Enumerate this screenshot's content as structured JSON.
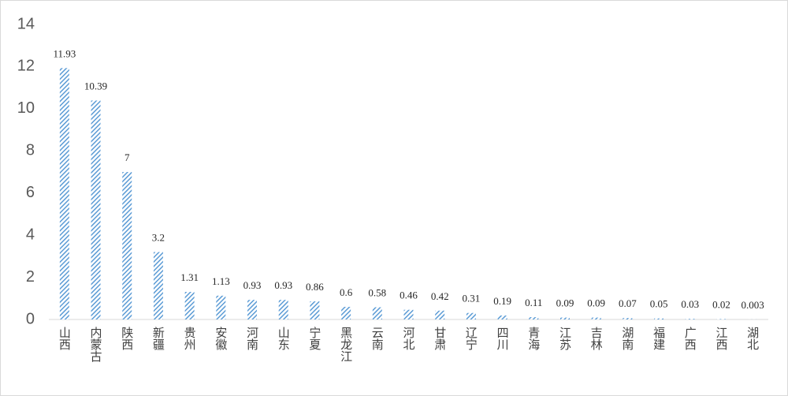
{
  "chart_data": {
    "type": "bar",
    "categories": [
      "山西",
      "内蒙古",
      "陕西",
      "新疆",
      "贵州",
      "安徽",
      "河南",
      "山东",
      "宁夏",
      "黑龙江",
      "云南",
      "河北",
      "甘肃",
      "辽宁",
      "四川",
      "青海",
      "江苏",
      "吉林",
      "湖南",
      "福建",
      "广西",
      "江西",
      "湖北"
    ],
    "values": [
      11.93,
      10.39,
      7,
      3.2,
      1.31,
      1.13,
      0.93,
      0.93,
      0.86,
      0.6,
      0.58,
      0.46,
      0.42,
      0.31,
      0.19,
      0.11,
      0.09,
      0.09,
      0.07,
      0.05,
      0.03,
      0.02,
      0.003
    ],
    "color": "#5b9bd5",
    "ylim": [
      0,
      14
    ],
    "yticks": [
      0,
      2,
      4,
      6,
      8,
      10,
      12,
      14
    ],
    "grid": false
  }
}
